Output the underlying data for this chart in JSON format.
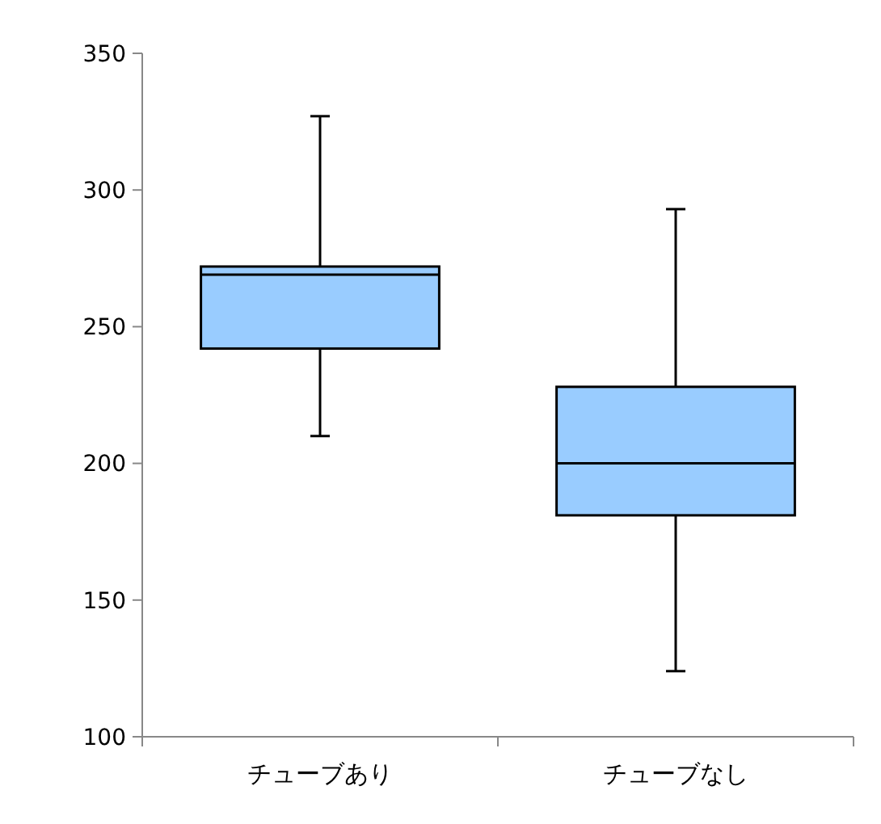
{
  "chart_data": {
    "type": "box",
    "categories": [
      "チューブあり",
      "チューブなし"
    ],
    "color": "#99ccff",
    "boxes": [
      {
        "low": 210,
        "q1": 242,
        "median": 269,
        "q3": 272,
        "high": 327
      },
      {
        "low": 124,
        "q1": 181,
        "median": 200,
        "q3": 228,
        "high": 293
      }
    ],
    "ylim": [
      100,
      350
    ],
    "yticks": [
      100,
      150,
      200,
      250,
      300,
      350
    ],
    "grid": false
  }
}
